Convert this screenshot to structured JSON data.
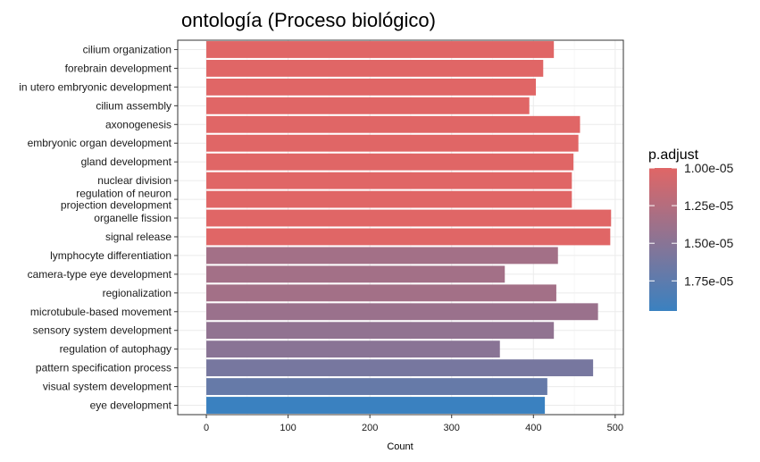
{
  "chart_data": {
    "type": "bar",
    "orientation": "horizontal",
    "title": "ontología (Proceso biológico)",
    "xlabel": "Count",
    "ylabel": "",
    "xlim": [
      -35,
      510
    ],
    "xticks": [
      0,
      100,
      200,
      300,
      400,
      500
    ],
    "grid": true,
    "categories": [
      "cilium organization",
      "forebrain development",
      "in utero embryonic development",
      "cilium assembly",
      "axonogenesis",
      "embryonic organ development",
      "gland development",
      "nuclear division",
      "regulation of neuron\nprojection development",
      "organelle fission",
      "signal release",
      "lymphocyte differentiation",
      "camera-type eye development",
      "regionalization",
      "microtubule-based movement",
      "sensory system development",
      "regulation of autophagy",
      "pattern specification process",
      "visual system development",
      "eye development"
    ],
    "values": [
      425,
      412,
      403,
      395,
      457,
      455,
      449,
      447,
      447,
      495,
      494,
      430,
      365,
      428,
      479,
      425,
      359,
      473,
      417,
      414
    ],
    "p_adjust": [
      1e-05,
      1e-05,
      1e-05,
      1e-05,
      1e-05,
      1e-05,
      1e-05,
      1e-05,
      1e-05,
      1e-05,
      1e-05,
      1.35e-05,
      1.35e-05,
      1.35e-05,
      1.4e-05,
      1.45e-05,
      1.5e-05,
      1.6e-05,
      1.7e-05,
      1.95e-05
    ],
    "color_scale": {
      "title": "p.adjust",
      "low_color": "#e06666",
      "high_color": "#3a81c0",
      "range": [
        1e-05,
        1.95e-05
      ],
      "ticks": [
        1e-05,
        1.25e-05,
        1.5e-05,
        1.75e-05
      ],
      "tick_labels": [
        "1.00e-05",
        "1.25e-05",
        "1.50e-05",
        "1.75e-05"
      ],
      "legend_position": "right"
    }
  }
}
